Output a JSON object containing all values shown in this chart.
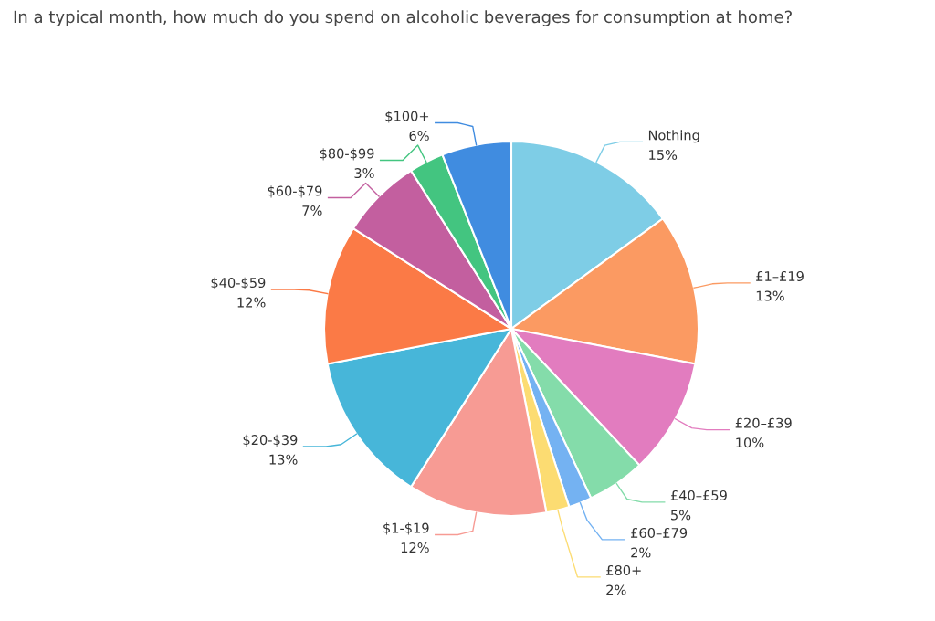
{
  "chart_data": {
    "type": "pie",
    "title": "In a typical month, how much do you spend on alcoholic beverages for consumption at home?",
    "categories": [
      "Nothing",
      "£1–£19",
      "£20–£39",
      "£40–£59",
      "£60–£79",
      "£80+",
      "$1-$19",
      "$20-$39",
      "$40-$59",
      "$60-$79",
      "$80-$99",
      "$100+"
    ],
    "values": [
      15,
      13,
      10,
      5,
      2,
      2,
      12,
      13,
      12,
      7,
      3,
      6
    ],
    "value_labels": [
      "15%",
      "13%",
      "10%",
      "5%",
      "2%",
      "2%",
      "12%",
      "13%",
      "12%",
      "7%",
      "3%",
      "6%"
    ],
    "colors": [
      "#7ecde6",
      "#fb9a62",
      "#e27cbf",
      "#84dcaa",
      "#74b2f2",
      "#fcdc72",
      "#f79b94",
      "#47b6d9",
      "#fb7a46",
      "#c35f9f",
      "#43c580",
      "#408ce0"
    ]
  }
}
